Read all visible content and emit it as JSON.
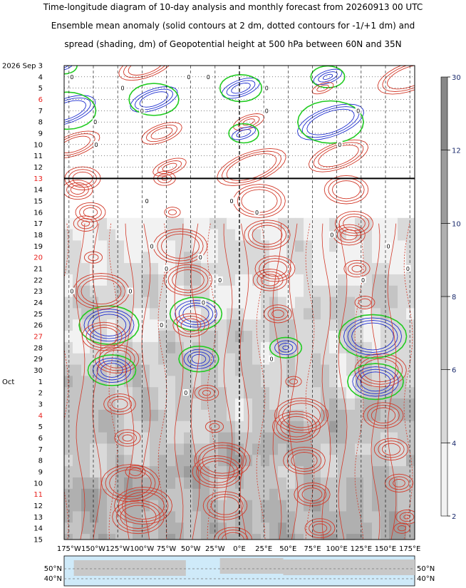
{
  "titles": [
    "Time-longitude diagram of 10-day analysis and monthly forecast from 20260913 00 UTC",
    "Ensemble mean anomaly (solid contours at 2 dm, dotted contours for -1/+1 dm) and",
    "spread (shading, dm) of Geopotential height at 500 hPa between 60N and 35N"
  ],
  "chart_data": {
    "type": "heatmap",
    "x_ticks": [
      "175°W",
      "150°W",
      "125°W",
      "100°W",
      "75°W",
      "50°W",
      "25°W",
      "0°E",
      "25°E",
      "50°E",
      "75°E",
      "100°E",
      "125°E",
      "150°E",
      "175°E"
    ],
    "x_values": [
      -175,
      -150,
      -125,
      -100,
      -75,
      -50,
      -25,
      0,
      25,
      50,
      75,
      100,
      125,
      150,
      175
    ],
    "xlim": [
      -180,
      180
    ],
    "y_rows": [
      {
        "label": "3",
        "prefix": "2026 Sep",
        "red": false
      },
      {
        "label": "4",
        "red": false
      },
      {
        "label": "5",
        "red": false
      },
      {
        "label": "6",
        "red": true
      },
      {
        "label": "7",
        "red": false
      },
      {
        "label": "8",
        "red": false
      },
      {
        "label": "9",
        "red": false
      },
      {
        "label": "10",
        "red": false
      },
      {
        "label": "11",
        "red": false
      },
      {
        "label": "12",
        "red": false
      },
      {
        "label": "13",
        "red": true
      },
      {
        "label": "14",
        "red": false
      },
      {
        "label": "15",
        "red": false
      },
      {
        "label": "16",
        "red": false
      },
      {
        "label": "17",
        "red": false
      },
      {
        "label": "18",
        "red": false
      },
      {
        "label": "19",
        "red": false
      },
      {
        "label": "20",
        "red": true
      },
      {
        "label": "21",
        "red": false
      },
      {
        "label": "22",
        "red": false
      },
      {
        "label": "23",
        "red": false
      },
      {
        "label": "24",
        "red": false
      },
      {
        "label": "25",
        "red": false
      },
      {
        "label": "26",
        "red": false
      },
      {
        "label": "27",
        "red": true
      },
      {
        "label": "28",
        "red": false
      },
      {
        "label": "29",
        "red": false
      },
      {
        "label": "30",
        "red": false
      },
      {
        "label": "1",
        "prefix": "Oct",
        "red": false
      },
      {
        "label": "2",
        "red": false
      },
      {
        "label": "3",
        "red": false
      },
      {
        "label": "4",
        "red": true
      },
      {
        "label": "5",
        "red": false
      },
      {
        "label": "6",
        "red": false
      },
      {
        "label": "7",
        "red": false
      },
      {
        "label": "8",
        "red": false
      },
      {
        "label": "9",
        "red": false
      },
      {
        "label": "10",
        "red": false
      },
      {
        "label": "11",
        "red": true
      },
      {
        "label": "12",
        "red": false
      },
      {
        "label": "13",
        "red": false
      },
      {
        "label": "14",
        "red": false
      },
      {
        "label": "15",
        "red": false
      }
    ],
    "analysis_end": "13",
    "colorbar": {
      "levels": [
        2,
        4,
        6,
        8,
        10,
        12,
        30
      ],
      "colors": [
        "#f2f2f2",
        "#d9d9d9",
        "#c4c4c4",
        "#b0b0b0",
        "#9c9c9c",
        "#888888"
      ]
    },
    "map_labels": {
      "left": [
        "50°N",
        "40°N"
      ],
      "right": [
        "50°N",
        "40°N"
      ]
    },
    "contour_labels": [
      {
        "text": "0",
        "lon": -52,
        "day": "4"
      },
      {
        "text": "0",
        "lon": -120,
        "day": "5"
      },
      {
        "text": "0",
        "lon": -100,
        "day": "7"
      },
      {
        "text": "0",
        "lon": -148,
        "day": "8"
      },
      {
        "text": "0",
        "lon": -147,
        "day": "10"
      },
      {
        "text": "0",
        "lon": 28,
        "day": "5"
      },
      {
        "text": "0",
        "lon": 28,
        "day": "7"
      },
      {
        "text": "0",
        "lon": 103,
        "day": "10"
      },
      {
        "text": "0",
        "lon": 122,
        "day": "7"
      },
      {
        "text": "0",
        "lon": -95,
        "day": "15"
      },
      {
        "text": "0",
        "lon": -8,
        "day": "15"
      },
      {
        "text": "0",
        "lon": 18,
        "day": "16"
      },
      {
        "text": "0",
        "lon": 95,
        "day": "18"
      },
      {
        "text": "0",
        "lon": 153,
        "day": "19"
      },
      {
        "text": "0",
        "lon": -90,
        "day": "19"
      },
      {
        "text": "0",
        "lon": -40,
        "day": "20"
      },
      {
        "text": "0",
        "lon": -75,
        "day": "21"
      },
      {
        "text": "0",
        "lon": -20,
        "day": "22"
      },
      {
        "text": "0",
        "lon": -172,
        "day": "23"
      },
      {
        "text": "0",
        "lon": -112,
        "day": "23"
      },
      {
        "text": "0",
        "lon": -37,
        "day": "24"
      },
      {
        "text": "0",
        "lon": -80,
        "day": "26"
      },
      {
        "text": "0",
        "lon": 127,
        "day": "22"
      },
      {
        "text": "0",
        "lon": 33,
        "day": "29"
      },
      {
        "text": "0",
        "lon": -55,
        "day": "2"
      },
      {
        "text": "0",
        "lon": -32,
        "day": "4"
      },
      {
        "text": "0",
        "lon": -172,
        "day": "4"
      },
      {
        "text": "0",
        "lon": 173,
        "day": "21"
      }
    ]
  }
}
